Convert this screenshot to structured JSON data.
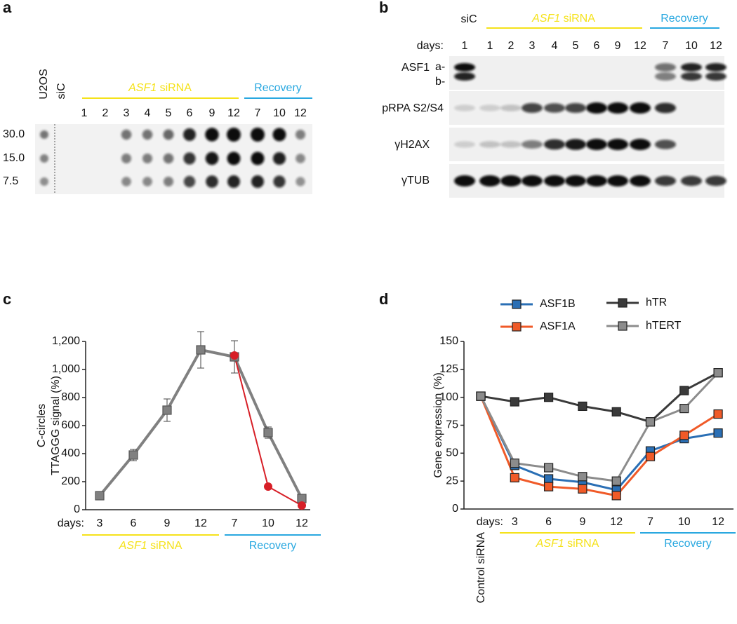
{
  "panel_a": {
    "letter": "a",
    "lanes_left": [
      "U2OS",
      "siC"
    ],
    "group_sirna": {
      "italic": "ASF1",
      "text": "siRNA"
    },
    "group_recovery": "Recovery",
    "lanes": [
      "1",
      "2",
      "3",
      "4",
      "5",
      "6",
      "9",
      "12",
      "7",
      "10",
      "12"
    ],
    "rows": [
      "30.0",
      "15.0",
      "7.5"
    ]
  },
  "panel_b": {
    "letter": "b",
    "control": "siC",
    "group_sirna": {
      "italic": "ASF1",
      "text": "siRNA"
    },
    "group_recovery": "Recovery",
    "days_label": "days:",
    "lanes": [
      "1",
      "1",
      "2",
      "3",
      "4",
      "5",
      "6",
      "9",
      "12",
      "7",
      "10",
      "12"
    ],
    "rows": [
      "ASF1",
      "pRPA S2/S4",
      "γH2AX",
      "γTUB"
    ],
    "isoforms": [
      "a-",
      "b-"
    ]
  },
  "chart_data": [
    {
      "type": "line",
      "panel_label": "c",
      "ylabel": [
        "C-circles",
        "TTAGGG signal (%)"
      ],
      "xprefix": "days:",
      "categories": [
        "3",
        "6",
        "9",
        "12",
        "7",
        "10",
        "12"
      ],
      "groups": [
        {
          "italic": "ASF1",
          "text": "siRNA",
          "color": "#f5e21a"
        },
        {
          "text": "Recovery",
          "color": "#29a8e0"
        }
      ],
      "ylim": [
        0,
        1200
      ],
      "yticks": [
        0,
        200,
        400,
        600,
        800,
        {
          "value": 1000,
          "label": "1,000"
        },
        {
          "value": 1200,
          "label": "1,200"
        }
      ],
      "series": [
        {
          "color": "#808080",
          "marker": "square",
          "values": [
            100,
            390,
            710,
            1140,
            1090,
            550,
            80
          ],
          "errors": [
            0,
            40,
            80,
            130,
            115,
            40,
            20
          ]
        },
        {
          "color": "#d71f27",
          "marker": "circle",
          "values": [
            null,
            null,
            null,
            null,
            1100,
            165,
            30
          ]
        }
      ]
    },
    {
      "type": "line",
      "panel_label": "d",
      "ylabel": "Gene expression (%)",
      "xprefix": "days:",
      "categories": [
        "Control siRNA",
        "3",
        "6",
        "9",
        "12",
        "7",
        "10",
        "12"
      ],
      "groups": [
        {
          "italic": "ASF1",
          "text": "siRNA",
          "color": "#f5e21a"
        },
        {
          "text": "Recovery",
          "color": "#29a8e0"
        }
      ],
      "ylim": [
        0,
        150
      ],
      "yticks": [
        0,
        25,
        50,
        75,
        100,
        125,
        150
      ],
      "series": [
        {
          "name": "ASF1B",
          "color": "#2a6fb5",
          "marker": "square",
          "values": [
            101,
            39,
            27,
            24,
            17,
            52,
            63,
            68
          ]
        },
        {
          "name": "ASF1A",
          "color": "#f05a28",
          "marker": "square",
          "values": [
            101,
            28,
            20,
            18,
            12,
            47,
            66,
            85
          ]
        },
        {
          "name": "hTR",
          "color": "#3a3a3a",
          "marker": "square",
          "values": [
            101,
            96,
            100,
            92,
            87,
            78,
            106,
            122
          ]
        },
        {
          "name": "hTERT",
          "color": "#8c8c8c",
          "marker": "square",
          "values": [
            101,
            41,
            37,
            29,
            25,
            78,
            90,
            122
          ]
        }
      ]
    }
  ]
}
